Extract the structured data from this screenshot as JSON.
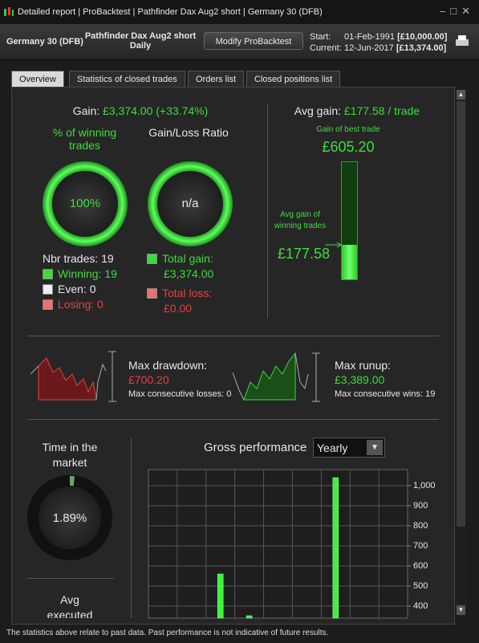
{
  "window": {
    "icon_tabs": [
      "Detailed report",
      "ProBacktest",
      "Pathfinder Dax Aug2 short",
      "Germany 30 (DFB)"
    ]
  },
  "header": {
    "instrument": "Germany 30 (DFB)",
    "strategy": "Pathfinder Dax Aug2 short",
    "period": "Daily",
    "button": "Modify ProBacktest",
    "start_label": "Start:",
    "start_date": "01-Feb-1991",
    "start_capital": "[£10,000.00]",
    "current_label": "Current:",
    "current_date": "12-Jun-2017",
    "current_capital": "[£13,374.00]"
  },
  "tabs": [
    "Overview",
    "Statistics of closed trades",
    "Orders list",
    "Closed positions list"
  ],
  "overview": {
    "gain_label": "Gain:",
    "gain_value": "£3,374.00 (+33.74%)",
    "winning_title": "% of winning trades",
    "winning_value": "100%",
    "ratio_title": "Gain/Loss Ratio",
    "ratio_value": "n/a",
    "nbr_trades": "Nbr trades: 19",
    "winning": "Winning: 19",
    "even": "Even: 0",
    "losing": "Losing: 0",
    "total_gain_label": "Total gain:",
    "total_gain": "£3,374.00",
    "total_loss_label": "Total loss:",
    "total_loss": "£0.00",
    "avg_gain_label": "Avg gain:",
    "avg_gain_value": "£177.58 / trade",
    "best_trade_label": "Gain of best trade",
    "best_trade": "£605.20",
    "avg_winning_label": "Avg gain of winning trades",
    "avg_winning": "£177.58",
    "drawdown_label": "Max drawdown:",
    "drawdown": "£700.20",
    "consec_losses": "Max consecutive losses: 0",
    "runup_label": "Max runup:",
    "runup": "£3,389.00",
    "consec_wins": "Max consecutive wins: 19",
    "time_title": "Time in the market",
    "time_value": "1.89%",
    "avg_executed": "Avg executed",
    "gross_title": "Gross performance",
    "gross_period": "Yearly"
  },
  "chart_data": {
    "type": "bar",
    "categories": [
      null,
      null,
      null,
      null,
      null,
      null,
      null,
      null,
      null
    ],
    "values": [
      null,
      null,
      560,
      352,
      null,
      null,
      1040,
      null,
      null
    ],
    "color": "#3df23d",
    "ylim": [
      340,
      1080
    ],
    "yticks": [
      400,
      500,
      600,
      700,
      800,
      900,
      {
        "value": 1000,
        "label": "1,000"
      }
    ],
    "grid": true
  },
  "footer": "The statistics above relate to past data. Past performance is not indicative of future results."
}
